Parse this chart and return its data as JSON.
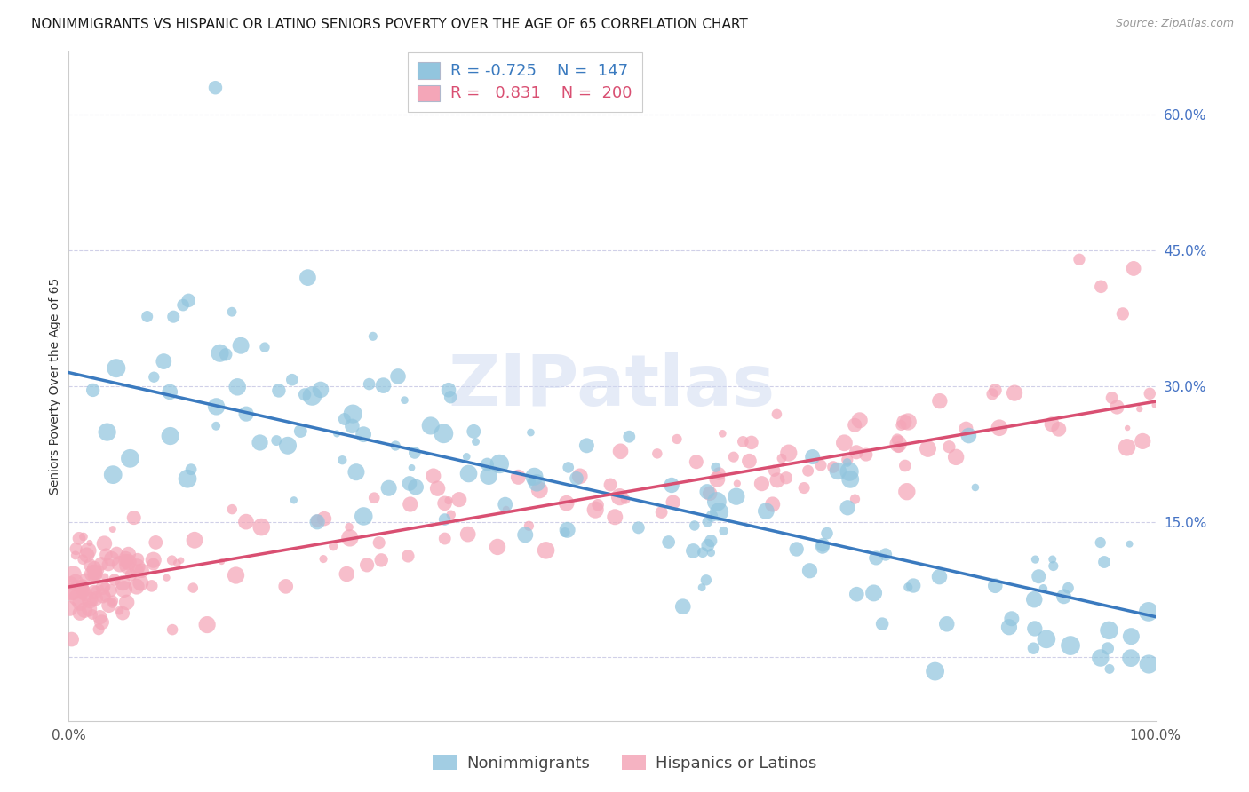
{
  "title": "NONIMMIGRANTS VS HISPANIC OR LATINO SENIORS POVERTY OVER THE AGE OF 65 CORRELATION CHART",
  "source": "Source: ZipAtlas.com",
  "ylabel": "Seniors Poverty Over the Age of 65",
  "xlim": [
    0.0,
    1.0
  ],
  "ylim": [
    -0.07,
    0.67
  ],
  "ytick_positions": [
    0.0,
    0.15,
    0.3,
    0.45,
    0.6
  ],
  "ytick_labels": [
    "",
    "15.0%",
    "30.0%",
    "45.0%",
    "60.0%"
  ],
  "xtick_positions": [
    0.0,
    1.0
  ],
  "xtick_labels": [
    "0.0%",
    "100.0%"
  ],
  "blue_color": "#92c5de",
  "pink_color": "#f4a6b8",
  "blue_line_color": "#3a7abf",
  "pink_line_color": "#d94f72",
  "blue_R": -0.725,
  "blue_N": 147,
  "pink_R": 0.831,
  "pink_N": 200,
  "blue_intercept": 0.315,
  "blue_slope": -0.27,
  "pink_intercept": 0.078,
  "pink_slope": 0.205,
  "watermark": "ZIPatlas",
  "grid_color": "#d0d0e8",
  "background_color": "#ffffff",
  "legend_blue_label": "Nonimmigrants",
  "legend_pink_label": "Hispanics or Latinos",
  "title_fontsize": 11,
  "axis_label_fontsize": 10,
  "tick_fontsize": 11,
  "legend_fontsize": 12,
  "ytick_color": "#4472c4",
  "xtick_color": "#555555",
  "title_color": "#1a1a1a",
  "ylabel_color": "#333333",
  "source_color": "#999999",
  "watermark_color": "#cdd8f0",
  "watermark_alpha": 0.5,
  "watermark_fontsize": 58
}
